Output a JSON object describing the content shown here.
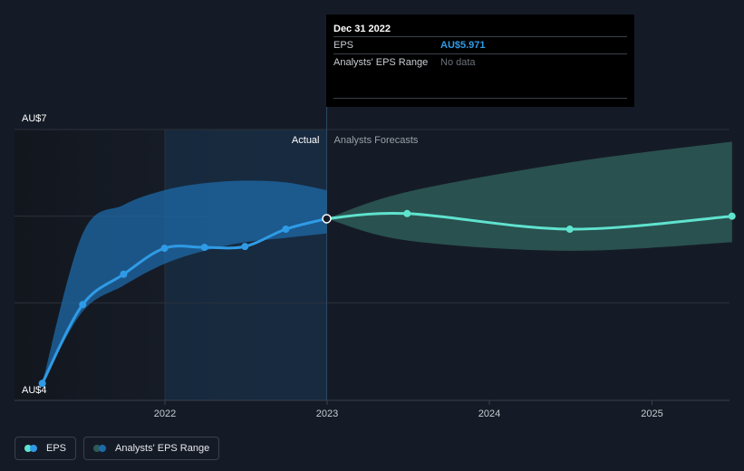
{
  "chart_data": {
    "type": "line",
    "y_axis": {
      "labels": [
        "AU$7",
        "AU$4"
      ],
      "ylim": [
        4,
        7
      ]
    },
    "x_axis": {
      "ticks": [
        "2022",
        "2023",
        "2024",
        "2025"
      ]
    },
    "section_labels": {
      "actual": "Actual",
      "forecast": "Analysts Forecasts"
    },
    "series": [
      {
        "name": "EPS",
        "color": "#2f9be6",
        "points": [
          [
            "2021-03-31",
            4.07
          ],
          [
            "2021-06-30",
            4.98
          ],
          [
            "2021-09-30",
            5.33
          ],
          [
            "2021-12-31",
            5.63
          ],
          [
            "2022-03-31",
            5.64
          ],
          [
            "2022-06-30",
            5.65
          ],
          [
            "2022-09-30",
            5.85
          ],
          [
            "2022-12-31",
            5.971
          ]
        ]
      },
      {
        "name": "EPS",
        "color": "#5fe3cf",
        "points": [
          [
            "2022-12-31",
            5.971
          ],
          [
            "2023-06-30",
            6.03
          ],
          [
            "2024-06-30",
            5.85
          ],
          [
            "2025-06-30",
            6.0
          ]
        ]
      }
    ],
    "range": {
      "name": "Analysts' EPS Range",
      "actual_color": "#1d6aa8",
      "forecast_color": "#2d5a57",
      "actual": {
        "x": [
          "2021-03-31",
          "2021-06-30",
          "2021-09-30",
          "2021-12-31",
          "2022-03-31",
          "2022-06-30",
          "2022-09-30",
          "2022-12-31"
        ],
        "upper": [
          4.07,
          5.8,
          6.13,
          6.3,
          6.38,
          6.41,
          6.39,
          6.3
        ],
        "lower": [
          4.07,
          4.9,
          5.2,
          5.45,
          5.6,
          5.7,
          5.75,
          5.8
        ]
      },
      "forecast": {
        "x": [
          "2022-12-31",
          "2023-06-30",
          "2024-06-30",
          "2025-06-30"
        ],
        "upper": [
          5.971,
          6.28,
          6.62,
          6.86
        ],
        "lower": [
          5.971,
          5.72,
          5.6,
          5.7
        ]
      }
    }
  },
  "tooltip": {
    "date": "Dec 31 2022",
    "rows": [
      {
        "label": "EPS",
        "value": "AU$5.971"
      },
      {
        "label": "Analysts' EPS Range",
        "value": "No data"
      }
    ]
  },
  "legend": [
    {
      "label": "EPS",
      "colors": [
        "#5fe3cf",
        "#2f9be6"
      ]
    },
    {
      "label": "Analysts' EPS Range",
      "colors": [
        "#2d5a57",
        "#1d6aa8"
      ]
    }
  ]
}
